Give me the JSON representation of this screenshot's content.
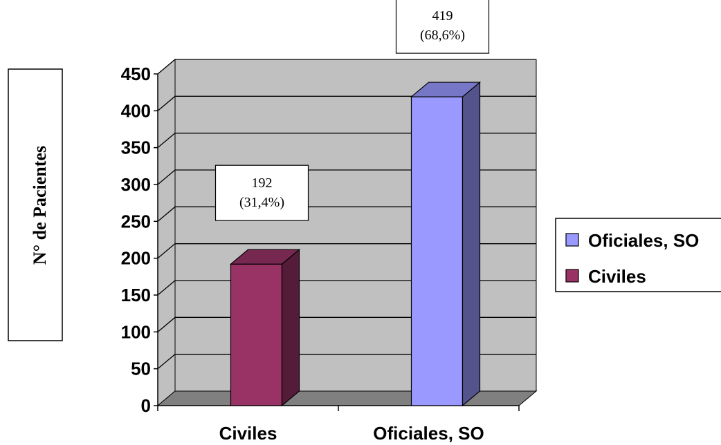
{
  "chart_data": {
    "type": "bar",
    "categories": [
      "Civiles",
      "Oficiales, SO"
    ],
    "values": [
      192,
      419
    ],
    "data_labels": [
      {
        "value": "192",
        "percent": "(31,4%)"
      },
      {
        "value": "419",
        "percent": "(68,6%)"
      }
    ],
    "ylabel": "N° de Pacientes",
    "ylim": [
      0,
      450
    ],
    "yticks": [
      "0",
      "50",
      "100",
      "150",
      "200",
      "250",
      "300",
      "350",
      "400",
      "450"
    ],
    "grid": true,
    "legend_position": "right",
    "legend": [
      {
        "label": "Oficiales, SO",
        "color": "#9999ff"
      },
      {
        "label": "Civiles",
        "color": "#993366"
      }
    ],
    "colors": {
      "Civiles": "#993366",
      "Oficiales, SO": "#9999ff",
      "wall": "#c0c0c0",
      "floor": "#808080"
    }
  }
}
